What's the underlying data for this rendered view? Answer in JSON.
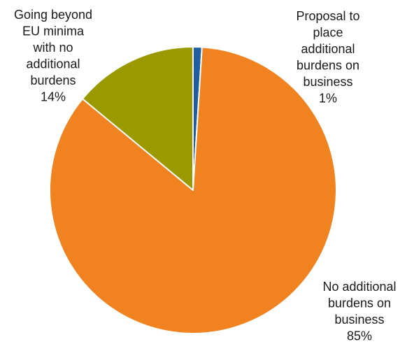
{
  "chart_data": {
    "type": "pie",
    "title": "",
    "slices": [
      {
        "label_lines": [
          "Proposal to",
          "place",
          "additional",
          "burdens on",
          "business"
        ],
        "percent_label": "1%",
        "value": 1,
        "color": "#1f5f9f"
      },
      {
        "label_lines": [
          "No additional",
          "burdens on",
          "business"
        ],
        "percent_label": "85%",
        "value": 85,
        "color": "#f08320"
      },
      {
        "label_lines": [
          "Going beyond",
          "EU minima",
          "with no",
          "additional",
          "burdens"
        ],
        "percent_label": "14%",
        "value": 14,
        "color": "#9a9a00"
      }
    ],
    "start_angle_deg": 0,
    "direction": "clockwise",
    "border_color": "#ffffff"
  }
}
